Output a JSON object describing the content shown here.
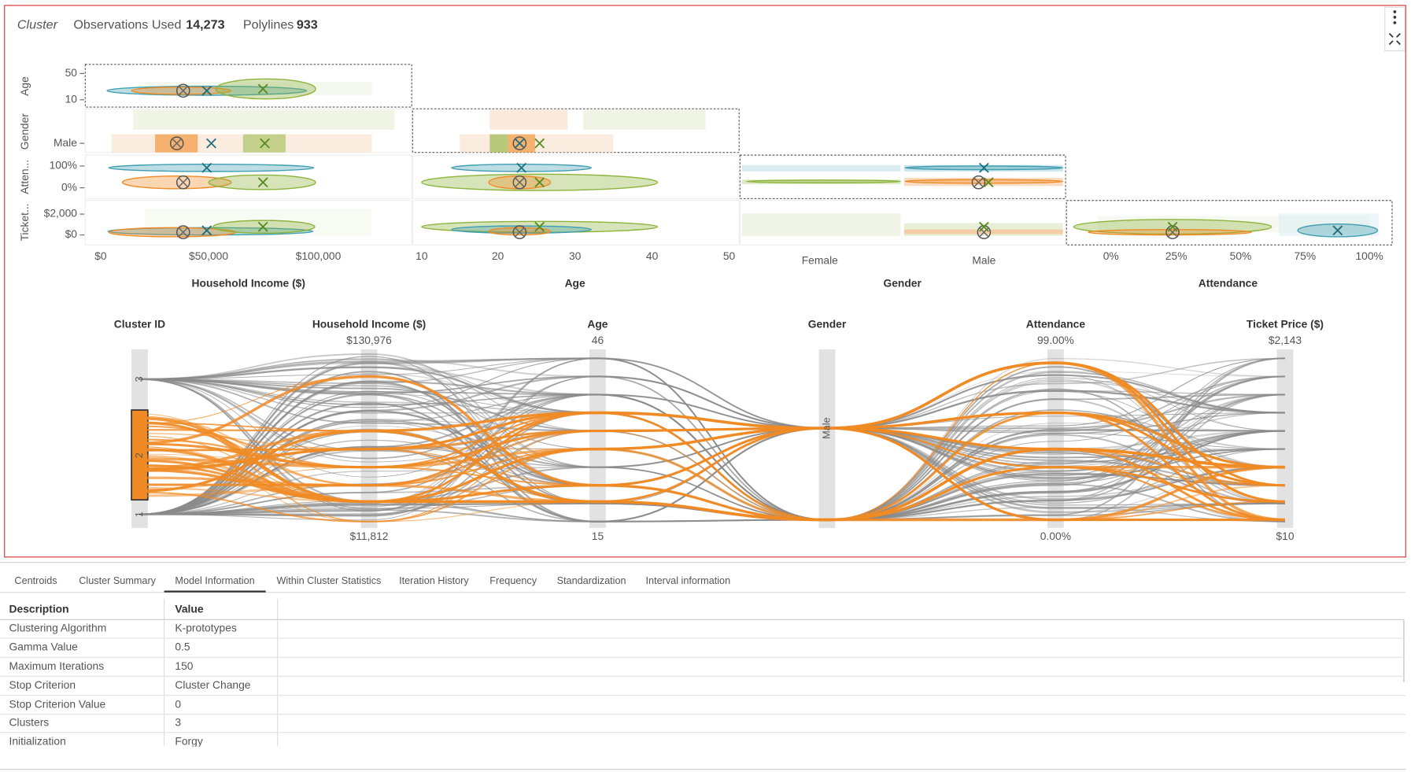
{
  "header": {
    "title": "Cluster",
    "observations_label": "Observations Used",
    "observations": "14,273",
    "polylines_label": "Polylines",
    "polylines": "933"
  },
  "matrix": {
    "row_labels": [
      "Age",
      "Gender",
      "Atten...",
      "Ticket..."
    ],
    "row_ticks": [
      [
        "50",
        "10"
      ],
      [
        "Male"
      ],
      [
        "100%",
        "0%"
      ],
      [
        "$2,000",
        "$0"
      ]
    ],
    "col_labels": [
      "Household Income ($)",
      "Age",
      "Gender",
      "Attendance"
    ],
    "col_ticks": [
      [
        "$0",
        "$50,000",
        "$100,000"
      ],
      [
        "10",
        "20",
        "30",
        "40",
        "50"
      ],
      [
        "Female",
        "Male"
      ],
      [
        "0%",
        "25%",
        "50%",
        "75%",
        "100%"
      ]
    ]
  },
  "parallel": {
    "axes": [
      {
        "name": "Cluster ID",
        "ticks": [
          "3",
          "2",
          "1"
        ]
      },
      {
        "name": "Household Income ($)",
        "top": "$130,976",
        "bottom": "$11,812"
      },
      {
        "name": "Age",
        "top": "46",
        "bottom": "15"
      },
      {
        "name": "Gender",
        "ticks": [
          "Male"
        ]
      },
      {
        "name": "Attendance",
        "top": "99.00%",
        "bottom": "0.00%"
      },
      {
        "name": "Ticket Price ($)",
        "top": "$2,143",
        "bottom": "$10"
      }
    ]
  },
  "tabs": [
    "Centroids",
    "Cluster Summary",
    "Model Information",
    "Within Cluster Statistics",
    "Iteration History",
    "Frequency",
    "Standardization",
    "Interval information"
  ],
  "table": {
    "columns": [
      "Description",
      "Value"
    ],
    "rows": [
      [
        "Clustering Algorithm",
        "K-prototypes"
      ],
      [
        "Gamma Value",
        "0.5"
      ],
      [
        "Maximum Iterations",
        "150"
      ],
      [
        "Stop Criterion",
        "Cluster Change"
      ],
      [
        "Stop Criterion Value",
        "0"
      ],
      [
        "Clusters",
        "3"
      ],
      [
        "Initialization",
        "Forgy"
      ]
    ]
  }
}
